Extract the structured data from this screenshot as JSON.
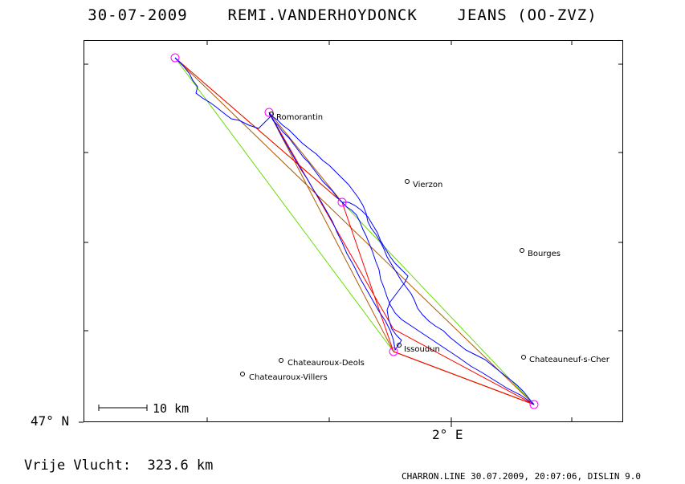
{
  "header": {
    "title": "30-07-2009    REMI.VANDERHOYDONCK    JEANS (OO-ZVZ)"
  },
  "axes": {
    "lat_label": "47° N",
    "lon_label": "2° E"
  },
  "scale": {
    "label": "10 km"
  },
  "cities": [
    {
      "name": "Romorantin"
    },
    {
      "name": "Vierzon"
    },
    {
      "name": "Bourges"
    },
    {
      "name": "Issoudun"
    },
    {
      "name": "Chateauroux-Deols"
    },
    {
      "name": "Chateauroux-Villers"
    },
    {
      "name": "Chateauneuf-s-Cher"
    }
  ],
  "footer": {
    "distance": "Vrije Vlucht:  323.6 km",
    "stamp": "CHARRON.LINE 30.07.2009, 20:07:06, DISLIN 9.0"
  },
  "colors": {
    "track": "#0000ff",
    "turnpoint": "#ff00ff",
    "line_red": "#ff0000",
    "line_green": "#66dd00",
    "line_brown": "#b05a00"
  }
}
